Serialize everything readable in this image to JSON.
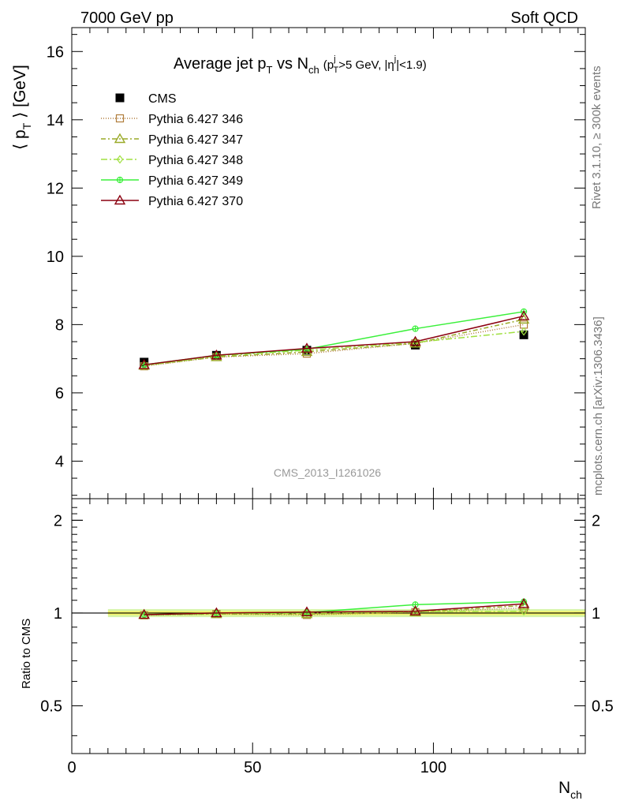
{
  "header": {
    "left": "7000 GeV pp",
    "right": "Soft QCD"
  },
  "side_text": {
    "rivet": "Rivet 3.1.10, ≥ 300k events",
    "mcplots": "mcplots.cern.ch [arXiv:1306.3436]"
  },
  "watermark": "CMS_2013_I1261026",
  "colors": {
    "cms": "#000000",
    "p346": "#b07c3a",
    "p347": "#9aaa28",
    "p348": "#a0e040",
    "p349": "#3af03a",
    "p370": "#8b0010",
    "band_inner": "#f3f36a",
    "band_outer": "#d6f5a8"
  },
  "chart_data": [
    {
      "type": "line",
      "title": "Average jet p_T vs N_ch (p_T^j>5 GeV, |η^j|<1.9)",
      "title_parts": {
        "main": "Average jet p",
        "sub1": "T",
        "mid": " vs N",
        "sub2": "ch",
        "cut": "(p",
        "cut_sub": "T",
        "cut_sup": "j",
        "cut_mid": ">5 GeV, |η",
        "cut_sup2": "j",
        "cut_end": "|<1.9)"
      },
      "ylabel": "⟨ p_T ⟩ [GeV]",
      "ylabel_parts": {
        "open": "⟨ p",
        "sub": "T",
        "close": " ⟩ [GeV]"
      },
      "xlabel": "N_ch",
      "xlim": [
        0,
        142
      ],
      "ylim": [
        2.9,
        16.7
      ],
      "yticks": [
        4,
        6,
        8,
        10,
        12,
        14,
        16
      ],
      "legend_position": "top-left",
      "series": [
        {
          "name": "CMS",
          "key": "cms",
          "marker": "square-filled",
          "dash": "none",
          "x": [
            20,
            40,
            65,
            95,
            125
          ],
          "y": [
            6.9,
            7.1,
            7.25,
            7.4,
            7.7
          ],
          "yerr": [
            0.1,
            0.1,
            0.1,
            0.1,
            0.1
          ]
        },
        {
          "name": "Pythia 6.427 346",
          "key": "p346",
          "marker": "square-open",
          "dash": "1,2",
          "x": [
            20,
            40,
            65,
            95,
            125
          ],
          "y": [
            6.78,
            7.05,
            7.15,
            7.45,
            8.0
          ]
        },
        {
          "name": "Pythia 6.427 347",
          "key": "p347",
          "marker": "triangle-open",
          "dash": "6,3,2,3",
          "x": [
            20,
            40,
            65,
            95,
            125
          ],
          "y": [
            6.8,
            7.05,
            7.2,
            7.45,
            8.15
          ]
        },
        {
          "name": "Pythia 6.427 348",
          "key": "p348",
          "marker": "diamond-open",
          "dash": "8,3,2,3",
          "x": [
            20,
            40,
            65,
            95,
            125
          ],
          "y": [
            6.8,
            7.08,
            7.25,
            7.48,
            7.8
          ]
        },
        {
          "name": "Pythia 6.427 349",
          "key": "p349",
          "marker": "crosshair-circle",
          "dash": "none",
          "x": [
            20,
            40,
            65,
            95,
            125
          ],
          "y": [
            6.82,
            7.1,
            7.28,
            7.88,
            8.38
          ]
        },
        {
          "name": "Pythia 6.427 370",
          "key": "p370",
          "marker": "triangle-open",
          "dash": "none",
          "x": [
            20,
            40,
            65,
            95,
            125
          ],
          "y": [
            6.82,
            7.1,
            7.3,
            7.5,
            8.25
          ]
        }
      ]
    },
    {
      "type": "line",
      "ylabel": "Ratio to CMS",
      "xlabel": "N_ch",
      "xlim": [
        0,
        142
      ],
      "ylim": [
        0.35,
        2.35
      ],
      "yscale": "log",
      "yticks": [
        0.5,
        1,
        2
      ],
      "xticks": [
        0,
        50,
        100
      ],
      "band": {
        "x": [
          10,
          142
        ],
        "lo_inner": 0.985,
        "hi_inner": 1.015,
        "lo_outer": 0.97,
        "hi_outer": 1.03
      },
      "series": [
        {
          "key": "p346",
          "x": [
            20,
            40,
            65,
            95,
            125
          ],
          "y": [
            0.983,
            0.993,
            0.986,
            1.007,
            1.039
          ]
        },
        {
          "key": "p347",
          "x": [
            20,
            40,
            65,
            95,
            125
          ],
          "y": [
            0.986,
            0.993,
            0.993,
            1.007,
            1.058
          ]
        },
        {
          "key": "p348",
          "x": [
            20,
            40,
            65,
            95,
            125
          ],
          "y": [
            0.986,
            0.997,
            1.0,
            1.011,
            1.013
          ]
        },
        {
          "key": "p349",
          "x": [
            20,
            40,
            65,
            95,
            125
          ],
          "y": [
            0.988,
            1.0,
            1.004,
            1.065,
            1.088
          ]
        },
        {
          "key": "p370",
          "x": [
            20,
            40,
            65,
            95,
            125
          ],
          "y": [
            0.988,
            1.0,
            1.007,
            1.014,
            1.071
          ]
        }
      ]
    }
  ]
}
